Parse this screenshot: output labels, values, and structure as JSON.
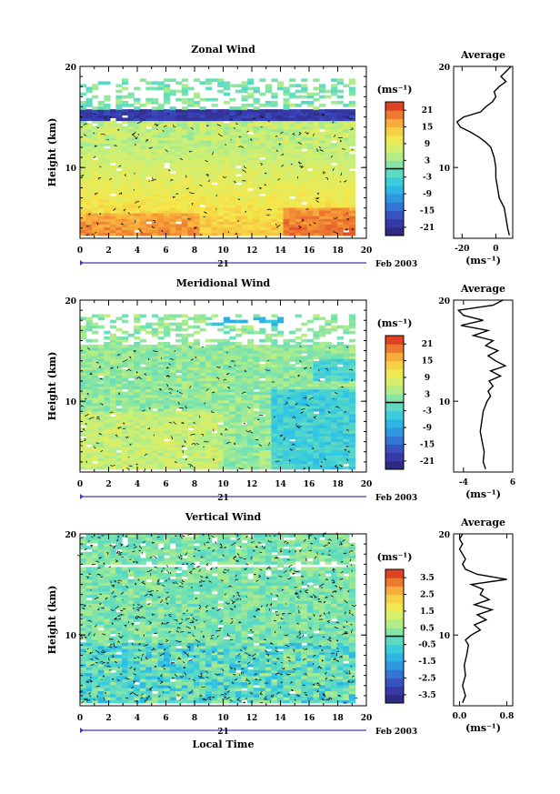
{
  "chart_data": [
    {
      "type": "heatmap",
      "title": "Zonal Wind",
      "ylabel": "Height (km)",
      "xlim": [
        0,
        20
      ],
      "ylim": [
        3,
        20
      ],
      "x_ticks": [
        0,
        2,
        4,
        6,
        8,
        10,
        12,
        14,
        16,
        18,
        20
      ],
      "y_ticks": [
        10,
        20
      ],
      "date_label": "21",
      "month_label": "Feb 2003",
      "colorbar": {
        "unit": "(ms⁻¹)",
        "ticks": [
          21,
          15,
          9,
          3,
          -3,
          -9,
          -15,
          -21
        ],
        "range": [
          -24,
          24
        ]
      },
      "colors": {
        "low": "#3a2fa0",
        "high": "#d22b1f"
      },
      "profile": {
        "title": "Average",
        "xlabel": "(ms⁻¹)",
        "xlim": [
          -25,
          10
        ],
        "x_ticks": [
          -20,
          0
        ],
        "y_ticks": [
          10,
          20
        ],
        "heights": [
          3.3,
          4,
          5,
          6,
          7,
          8,
          9,
          10,
          11,
          12,
          12.5,
          13,
          13.5,
          14,
          14.5,
          15,
          15.5,
          16,
          16.5,
          17,
          17.5,
          18,
          18.5,
          19,
          19.5,
          20
        ],
        "values": [
          8,
          7,
          6,
          5,
          2,
          1,
          0,
          0,
          -1,
          -3,
          -6,
          -10,
          -15,
          -21,
          -23,
          -19,
          -9,
          -6,
          -2,
          0,
          -1,
          2,
          6,
          3,
          6,
          9
        ]
      }
    },
    {
      "type": "heatmap",
      "title": "Meridional Wind",
      "ylabel": "Height (km)",
      "xlim": [
        0,
        20
      ],
      "ylim": [
        3,
        20
      ],
      "x_ticks": [
        0,
        2,
        4,
        6,
        8,
        10,
        12,
        14,
        16,
        18,
        20
      ],
      "y_ticks": [
        10,
        20
      ],
      "date_label": "21",
      "month_label": "Feb 2003",
      "colorbar": {
        "unit": "(ms⁻¹)",
        "ticks": [
          21,
          15,
          9,
          3,
          -3,
          -9,
          -15,
          -21
        ],
        "range": [
          -24,
          24
        ]
      },
      "profile": {
        "title": "Average",
        "xlabel": "(ms⁻¹)",
        "xlim": [
          -6,
          6
        ],
        "x_ticks": [
          -4,
          6
        ],
        "y_ticks": [
          10,
          20
        ],
        "heights": [
          3.3,
          4,
          5,
          6,
          7,
          8,
          9,
          10,
          10.5,
          11,
          11.5,
          12,
          12.5,
          13,
          13.5,
          14,
          14.5,
          15,
          15.5,
          16,
          16.5,
          17,
          17.5,
          18,
          18.5,
          19,
          19.5,
          20
        ],
        "values": [
          0.5,
          0,
          0.2,
          -0.2,
          -0.6,
          -0.3,
          0,
          0.8,
          1.5,
          1,
          2,
          1.2,
          3.5,
          1.5,
          4.5,
          2.5,
          1,
          3,
          0.5,
          2,
          -2,
          1,
          -4.5,
          0,
          -4,
          -5,
          2,
          4
        ]
      }
    },
    {
      "type": "heatmap",
      "title": "Vertical Wind",
      "ylabel": "Height (km)",
      "xlabel": "Local Time",
      "xlim": [
        0,
        20
      ],
      "ylim": [
        3,
        20
      ],
      "x_ticks": [
        0,
        2,
        4,
        6,
        8,
        10,
        12,
        14,
        16,
        18,
        20
      ],
      "y_ticks": [
        10,
        20
      ],
      "date_label": "21",
      "month_label": "Feb 2003",
      "colorbar": {
        "unit": "(ms⁻¹)",
        "ticks": [
          3.5,
          2.5,
          1.5,
          0.5,
          -0.5,
          -1.5,
          -2.5,
          -3.5
        ],
        "range": [
          -4,
          4
        ]
      },
      "profile": {
        "title": "Average",
        "xlabel": "(ms⁻¹)",
        "xlim": [
          -0.1,
          0.9
        ],
        "x_ticks": [
          0.0,
          0.8
        ],
        "x_tick_labels": [
          "0.0",
          "0.8"
        ],
        "y_ticks": [
          10,
          20
        ],
        "heights": [
          3.3,
          4,
          5,
          6,
          7,
          8,
          9,
          9.5,
          10,
          10.5,
          11,
          11.5,
          12,
          12.5,
          13,
          13.5,
          14,
          14.5,
          15,
          15.5,
          16,
          16.5,
          17,
          17.5,
          18,
          18.5,
          19,
          19.5,
          20
        ],
        "values": [
          0.05,
          0.1,
          0.05,
          0.1,
          0.08,
          0.12,
          0.15,
          0.1,
          0.2,
          0.35,
          0.25,
          0.45,
          0.3,
          0.55,
          0.25,
          0.5,
          0.35,
          0.4,
          0.2,
          0.8,
          0.3,
          0.1,
          0.05,
          0.1,
          0.05,
          0.0,
          0.05,
          0.0,
          0.05
        ]
      }
    }
  ]
}
